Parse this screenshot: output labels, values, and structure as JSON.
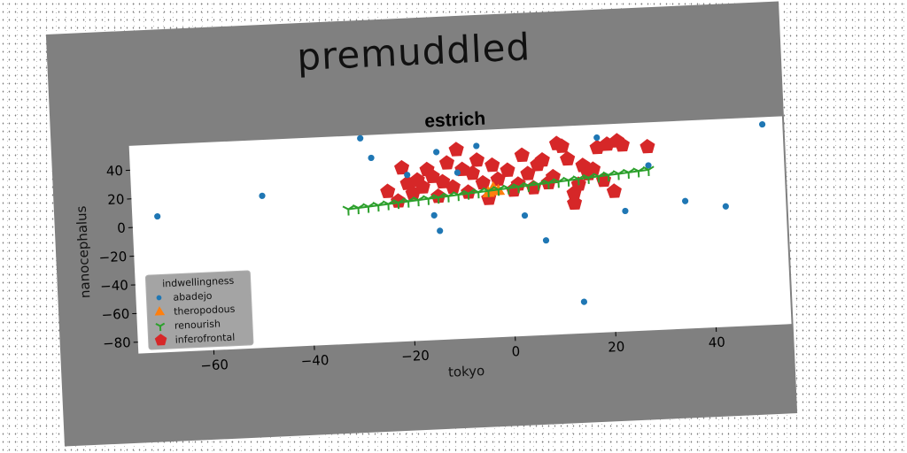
{
  "chart_data": {
    "type": "scatter",
    "suptitle": "premuddled",
    "title": "estrich",
    "xlabel": "tokyo",
    "ylabel": "nanocephalus",
    "xlim": [
      -75,
      55
    ],
    "ylim": [
      -88,
      57
    ],
    "xticks": [
      -60,
      -40,
      -20,
      0,
      20,
      40
    ],
    "yticks": [
      -80,
      -60,
      -40,
      -20,
      0,
      20,
      40
    ],
    "grid": false,
    "legend": {
      "title": "indwellingness",
      "placement": "lower-left"
    },
    "colors": {
      "abadejo": "#1f77b4",
      "theropodous": "#ff7f0e",
      "renourish": "#2ca02c",
      "inferofrontal": "#d62728"
    },
    "series": [
      {
        "name": "abadejo",
        "marker": "circle",
        "points": [
          [
            -70,
            7
          ],
          [
            -49,
            18
          ],
          [
            -29,
            55
          ],
          [
            -27,
            41
          ],
          [
            -20,
            28
          ],
          [
            -15,
            -1
          ],
          [
            -14,
            -12
          ],
          [
            -14,
            43
          ],
          [
            -10,
            28
          ],
          [
            -6,
            46
          ],
          [
            3,
            -4
          ],
          [
            7,
            -22
          ],
          [
            14,
            -66
          ],
          [
            18,
            48
          ],
          [
            23,
            -4
          ],
          [
            28,
            27
          ],
          [
            35,
            1
          ],
          [
            43,
            -4
          ],
          [
            51,
            52
          ]
        ]
      },
      {
        "name": "theropodous",
        "marker": "triangle",
        "points": [
          [
            -3,
            16
          ],
          [
            -4,
            13
          ],
          [
            -2,
            14
          ],
          [
            -3,
            15
          ]
        ]
      },
      {
        "name": "renourish",
        "marker": "tri",
        "points": [
          [
            -32,
            5.9
          ],
          [
            -30,
            6.5
          ],
          [
            -28,
            7.1
          ],
          [
            -26,
            7.7
          ],
          [
            -24,
            8.3
          ],
          [
            -22,
            8.9
          ],
          [
            -20,
            9.5
          ],
          [
            -18,
            10.1
          ],
          [
            -16,
            10.7
          ],
          [
            -14,
            11.3
          ],
          [
            -12,
            11.9
          ],
          [
            -10,
            12.5
          ],
          [
            -8,
            13.1
          ],
          [
            -6,
            13.7
          ],
          [
            -4,
            14.3
          ],
          [
            -2,
            14.9
          ],
          [
            0,
            15.5
          ],
          [
            2,
            16.1
          ],
          [
            4,
            16.7
          ],
          [
            6,
            17.3
          ],
          [
            8,
            17.9
          ],
          [
            10,
            18.5
          ],
          [
            12,
            19.1
          ],
          [
            14,
            19.7
          ],
          [
            16,
            20.3
          ],
          [
            18,
            20.9
          ],
          [
            20,
            21.5
          ],
          [
            22,
            22.1
          ],
          [
            24,
            22.7
          ],
          [
            26,
            23.3
          ],
          [
            28,
            23.9
          ]
        ]
      },
      {
        "name": "inferofrontal",
        "marker": "pentagon",
        "points": [
          [
            -24,
            17
          ],
          [
            -22,
            10
          ],
          [
            -21,
            33
          ],
          [
            -20,
            22
          ],
          [
            -19,
            15
          ],
          [
            -18,
            24
          ],
          [
            -17,
            19
          ],
          [
            -16,
            31
          ],
          [
            -15,
            26
          ],
          [
            -14,
            12
          ],
          [
            -13,
            22
          ],
          [
            -12,
            35
          ],
          [
            -11,
            18
          ],
          [
            -10,
            44
          ],
          [
            -9,
            30
          ],
          [
            -8,
            14
          ],
          [
            -7,
            27
          ],
          [
            -6,
            36
          ],
          [
            -5,
            20
          ],
          [
            -4,
            9
          ],
          [
            -3,
            32
          ],
          [
            -2,
            22
          ],
          [
            0,
            28
          ],
          [
            1,
            14
          ],
          [
            2,
            18
          ],
          [
            3,
            38
          ],
          [
            4,
            25
          ],
          [
            5,
            15
          ],
          [
            6,
            31
          ],
          [
            7,
            34
          ],
          [
            8,
            18
          ],
          [
            9,
            22
          ],
          [
            10,
            45
          ],
          [
            11,
            43
          ],
          [
            12,
            34
          ],
          [
            13,
            10
          ],
          [
            13,
            3
          ],
          [
            14,
            16
          ],
          [
            15,
            29
          ],
          [
            16,
            23
          ],
          [
            17,
            26
          ],
          [
            18,
            41
          ],
          [
            19,
            18
          ],
          [
            20,
            43
          ],
          [
            21,
            10
          ],
          [
            22,
            45
          ],
          [
            23,
            42
          ],
          [
            28,
            40
          ]
        ]
      }
    ]
  }
}
